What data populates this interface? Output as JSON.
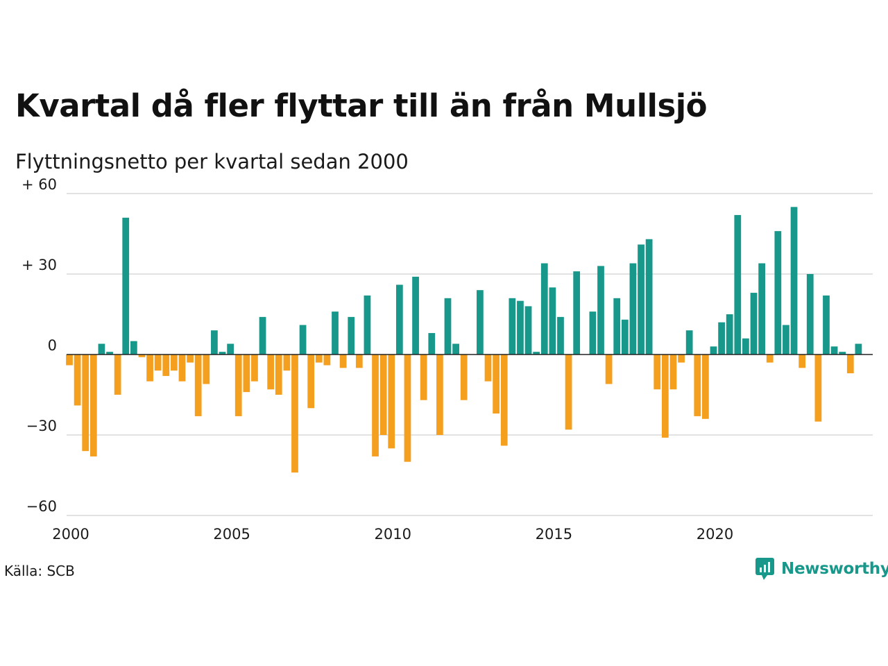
{
  "title": "Kvartal då fler flyttar till än från Mullsjö",
  "subtitle": "Flyttningsnetto per kvartal sedan 2000",
  "source": "Källa: SCB",
  "brand": {
    "name": "Newsworthy",
    "icon": "newsworthy-logo-icon"
  },
  "colors": {
    "positive": "#17988a",
    "negative": "#f59f1f",
    "grid": "#d9d9d9",
    "zero_line": "#222222",
    "brand": "#17988a"
  },
  "chart_data": {
    "type": "bar",
    "title": "Kvartal då fler flyttar till än från Mullsjö",
    "subtitle": "Flyttningsnetto per kvartal sedan 2000",
    "x_start": 2000,
    "x_step": 0.25,
    "xlim": [
      2000,
      2024.75
    ],
    "ylim": [
      -60,
      60
    ],
    "y_ticks": [
      {
        "value": 60,
        "label": "+ 60"
      },
      {
        "value": 30,
        "label": "+ 30"
      },
      {
        "value": 0,
        "label": "0"
      },
      {
        "value": -30,
        "label": "−30"
      },
      {
        "value": -60,
        "label": "−60"
      }
    ],
    "x_ticks": [
      {
        "value": 2000,
        "label": "2000"
      },
      {
        "value": 2005,
        "label": "2005"
      },
      {
        "value": 2010,
        "label": "2010"
      },
      {
        "value": 2015,
        "label": "2015"
      },
      {
        "value": 2020,
        "label": "2020"
      }
    ],
    "grid": true,
    "values": [
      -4,
      -19,
      -36,
      -38,
      4,
      1,
      -15,
      51,
      5,
      -1,
      -10,
      -6,
      -8,
      -6,
      -10,
      -3,
      -23,
      -11,
      9,
      1,
      4,
      -23,
      -14,
      -10,
      14,
      -13,
      -15,
      -6,
      -44,
      11,
      -20,
      -3,
      -4,
      16,
      -5,
      14,
      -5,
      22,
      -38,
      -30,
      -35,
      26,
      -40,
      29,
      -17,
      8,
      -30,
      21,
      4,
      -17,
      0,
      24,
      -10,
      -22,
      -34,
      21,
      20,
      18,
      1,
      34,
      25,
      14,
      -28,
      31,
      0,
      16,
      33,
      -11,
      21,
      13,
      34,
      41,
      43,
      -13,
      -31,
      -13,
      -3,
      9,
      -23,
      -24,
      3,
      12,
      15,
      52,
      6,
      23,
      34,
      -3,
      46,
      11,
      55,
      -5,
      30,
      -25,
      22,
      3,
      1,
      -7,
      4
    ]
  }
}
